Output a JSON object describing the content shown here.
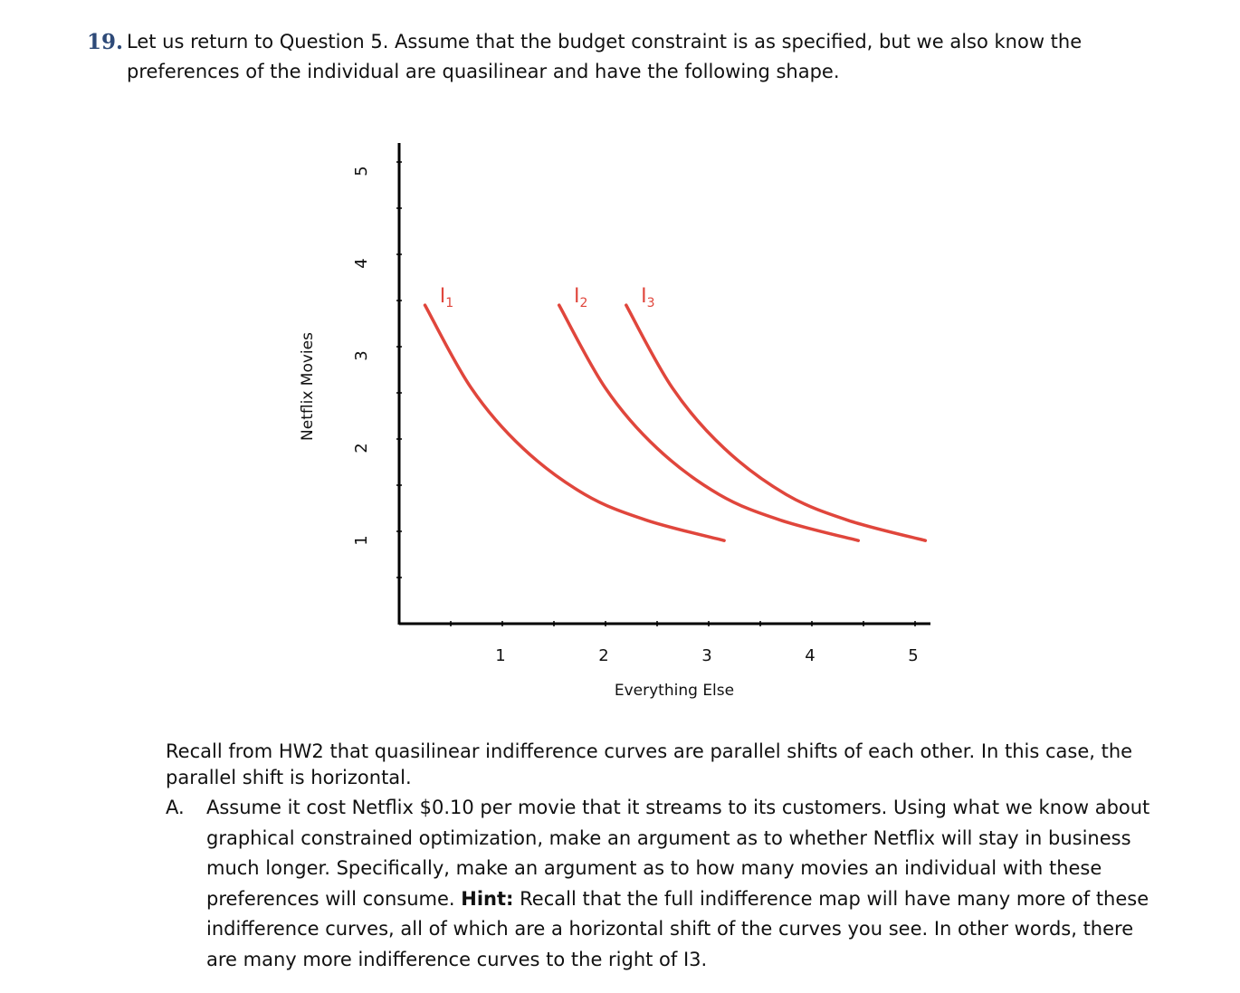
{
  "question": {
    "number": "19.",
    "text": "Let us return to Question 5.  Assume that the budget constraint is as specified, but we also know the preferences of the individual are quasilinear and have the following shape."
  },
  "chart_data": {
    "type": "line",
    "title": "",
    "xlabel": "Everything Else",
    "ylabel": "Netflix Movies",
    "xlim": [
      0,
      5.1
    ],
    "ylim": [
      0,
      5.2
    ],
    "xticks": [
      "1",
      "2",
      "3",
      "4",
      "5"
    ],
    "yticks": [
      "1",
      "2",
      "3",
      "4",
      "5"
    ],
    "grid": false,
    "curve_color": "#e0463c",
    "series": [
      {
        "name": "I",
        "sub": "1",
        "x": [
          0.25,
          0.7,
          1.2,
          1.8,
          2.4,
          3.15
        ],
        "y": [
          3.45,
          2.55,
          1.9,
          1.4,
          1.12,
          0.9
        ]
      },
      {
        "name": "I",
        "sub": "2",
        "x": [
          1.55,
          2.0,
          2.5,
          3.1,
          3.7,
          4.45
        ],
        "y": [
          3.45,
          2.55,
          1.9,
          1.4,
          1.12,
          0.9
        ]
      },
      {
        "name": "I",
        "sub": "3",
        "x": [
          2.2,
          2.65,
          3.15,
          3.75,
          4.35,
          5.1
        ],
        "y": [
          3.45,
          2.55,
          1.9,
          1.4,
          1.12,
          0.9
        ]
      }
    ]
  },
  "recall_text": "Recall from HW2 that quasilinear indifference curves are parallel shifts of each other.  In this case, the parallel shift is horizontal.",
  "part_a": {
    "letter": "A.",
    "text": "Assume it cost Netflix $0.10 per movie that it streams to its customers.  Using what we know about graphical constrained optimization, make an argument as to whether Netflix will stay in business much longer.  Specifically, make an argument as to how many movies an individual with these preferences will consume.",
    "hint_label": "Hint:",
    "hint_text": "Recall that the full indifference map will have many more of these indifference curves, all of which are a horizontal shift of the curves you see.  In other words, there are many more indifference curves to the right of I3."
  }
}
